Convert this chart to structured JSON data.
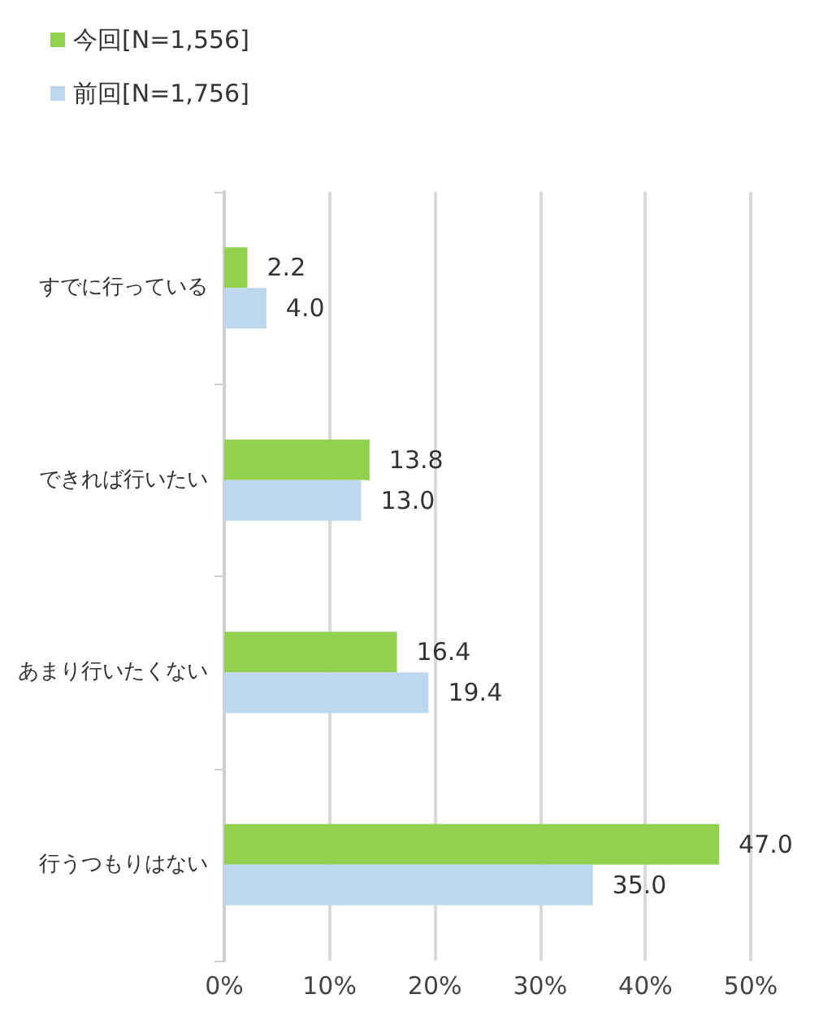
{
  "chart_data": {
    "type": "bar",
    "orientation": "horizontal",
    "categories": [
      "すでに行っている",
      "できれば行いたい",
      "あまり行いたくない",
      "行うつもりはない"
    ],
    "series": [
      {
        "name": "今回[N=1,556]",
        "color": "#92d050",
        "values": [
          2.2,
          13.8,
          16.4,
          47.0
        ],
        "value_labels": [
          "2.2",
          "13.8",
          "16.4",
          "47.0"
        ]
      },
      {
        "name": "前回[N=1,756]",
        "color": "#bdd7ee",
        "values": [
          4.0,
          13.0,
          19.4,
          35.0
        ],
        "value_labels": [
          "4.0",
          "13.0",
          "19.4",
          "35.0"
        ]
      }
    ],
    "xlim": [
      0,
      50
    ],
    "xticks": [
      {
        "value": 0,
        "label": "0%"
      },
      {
        "value": 10,
        "label": "10%"
      },
      {
        "value": 20,
        "label": "20%"
      },
      {
        "value": 30,
        "label": "30%"
      },
      {
        "value": 40,
        "label": "40%"
      },
      {
        "value": 50,
        "label": "50%"
      }
    ],
    "grid": "x",
    "legend": "top left"
  }
}
